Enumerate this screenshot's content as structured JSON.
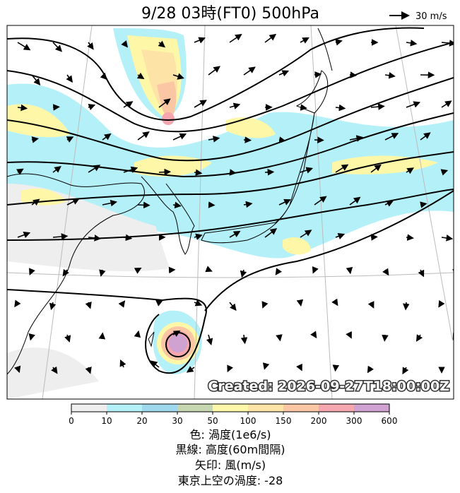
{
  "header": {
    "title": "9/28  03時(FT0)     500hPa",
    "reference_vector": "30 m/s"
  },
  "map": {
    "created": "Created: 2026-09-27T18:00:00Z"
  },
  "colorbar": {
    "ticks": [
      "0",
      "10",
      "20",
      "30",
      "50",
      "100",
      "150",
      "200",
      "300",
      "600"
    ],
    "colors": [
      "#eeeeee",
      "#b4f0f8",
      "#9ed8ee",
      "#c6d6b0",
      "#fff7a8",
      "#fde4a6",
      "#fbc6a4",
      "#f6a6ae",
      "#cfa2d2"
    ]
  },
  "caption": [
    "色: 渦度(1e6/s)",
    "黒線: 高度(60m間隔)",
    "矢印: 風(m/s)",
    "東京上空の渦度: -28"
  ]
}
